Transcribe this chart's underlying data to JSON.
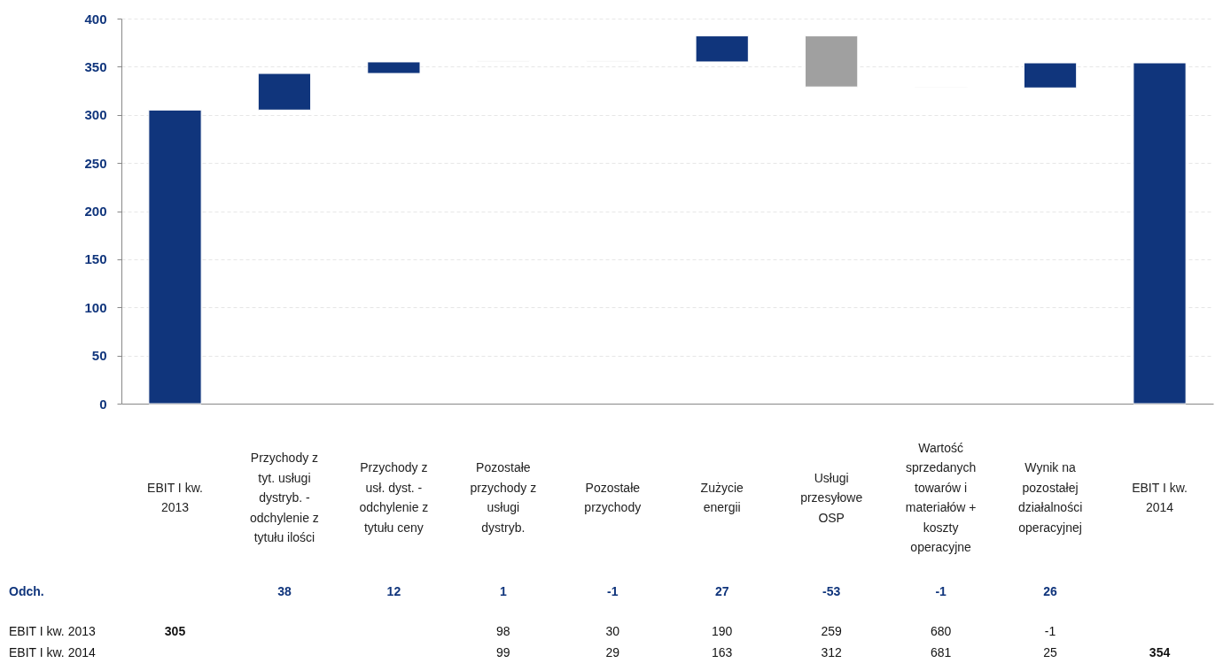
{
  "chart_data": {
    "type": "bar",
    "categories": [
      "EBIT I kw. 2013",
      "Przychody z tyt. usługi dystryb. - odchylenie z tytułu ilości",
      "Przychody z usł. dyst. - odchylenie z tytułu ceny",
      "Pozostałe przychody z usługi dystryb.",
      "Pozostałe przychody",
      "Zużycie energii",
      "Usługi przesyłowe OSP",
      "Wartość sprzedanych towarów i materiałów + koszty operacyjne",
      "Wynik na pozostałej działalności operacyjnej",
      "EBIT I kw. 2014"
    ],
    "values": [
      305,
      38,
      12,
      1,
      -1,
      27,
      -53,
      -1,
      26,
      354
    ],
    "base": [
      0,
      305,
      343,
      355,
      356,
      355,
      382,
      329,
      328,
      0
    ],
    "colors": [
      "#10357c",
      "#10357c",
      "#10357c",
      "#e3e3e3",
      "#e3e3e3",
      "#10357c",
      "#a0a0a0",
      "#e3e3e3",
      "#10357c",
      "#10357c"
    ],
    "ylim": [
      0,
      400
    ],
    "yticks": [
      0,
      50,
      100,
      150,
      200,
      250,
      300,
      350,
      400
    ],
    "grid": "y",
    "annotations": [
      "Odch.",
      "38",
      "12",
      "1",
      "-1",
      "27",
      "-53",
      "-1",
      "26",
      "EBIT I kw. 2013",
      "305",
      "98",
      "30",
      "190",
      "259",
      "680",
      "-1",
      "EBIT I kw. 2014",
      "99",
      "29",
      "163",
      "312",
      "681",
      "25",
      "354"
    ]
  }
}
